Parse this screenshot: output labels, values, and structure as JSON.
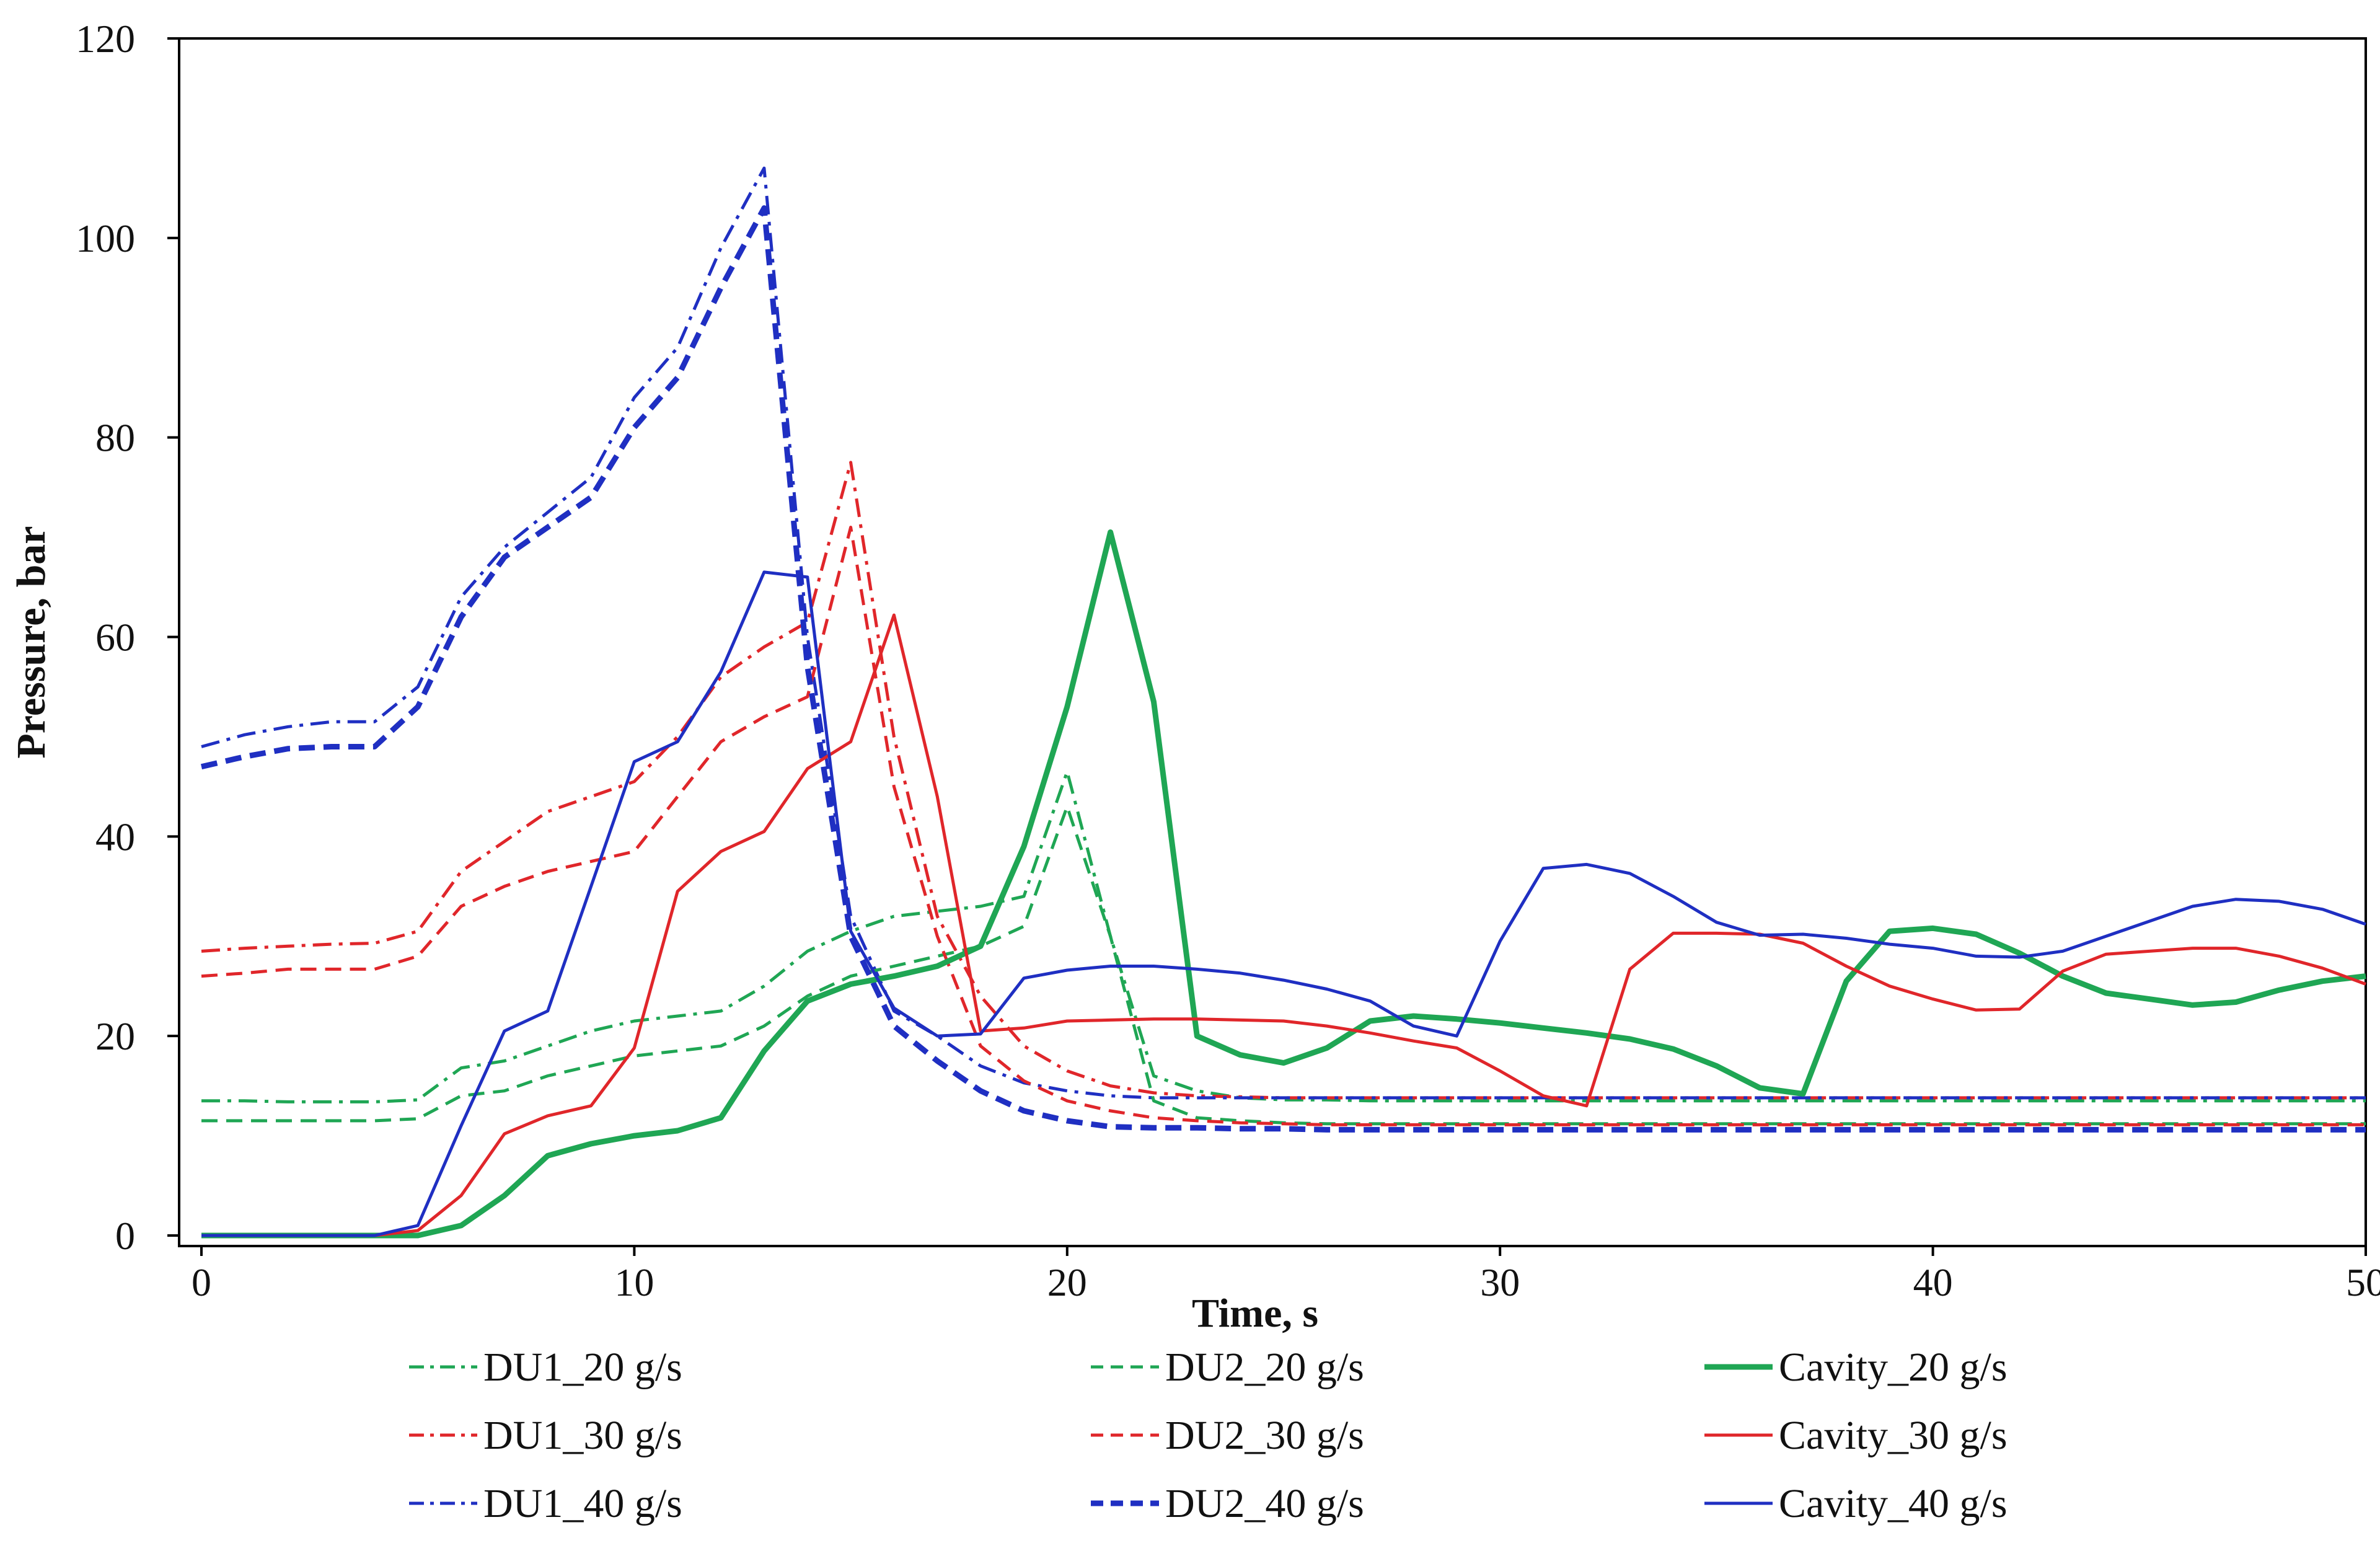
{
  "chart_data": {
    "type": "line",
    "xlabel": "Time, s",
    "ylabel": "Pressure, bar",
    "xlim": [
      0,
      50
    ],
    "ylim": [
      0,
      120
    ],
    "xticks": [
      0,
      10,
      20,
      30,
      40,
      50
    ],
    "yticks": [
      0,
      20,
      40,
      60,
      80,
      100,
      120
    ],
    "grid": false,
    "legend_position": "bottom",
    "series": [
      {
        "name": "DU1_20 g/s",
        "color": "#1fa654",
        "style": "dashdot",
        "weight": "normal",
        "x": [
          0,
          1,
          2,
          3,
          4,
          5,
          6,
          7,
          8,
          9,
          10,
          11,
          12,
          13,
          14,
          15,
          16,
          17,
          18,
          19,
          20,
          21,
          22,
          23,
          24,
          25,
          26,
          27,
          28,
          29,
          30,
          31,
          32,
          33,
          34,
          35,
          36,
          37,
          38,
          39,
          40,
          41,
          42,
          43,
          44,
          45,
          46,
          47,
          48,
          49,
          50
        ],
        "y": [
          13.5,
          13.5,
          13.4,
          13.4,
          13.4,
          13.6,
          16.8,
          17.5,
          19,
          20.5,
          21.5,
          22,
          22.5,
          25,
          28.5,
          30.5,
          32,
          32.5,
          33,
          34,
          46.5,
          30,
          16,
          14.5,
          13.8,
          13.6,
          13.6,
          13.5,
          13.5,
          13.5,
          13.5,
          13.5,
          13.5,
          13.5,
          13.5,
          13.5,
          13.5,
          13.5,
          13.5,
          13.5,
          13.5,
          13.5,
          13.5,
          13.5,
          13.5,
          13.5,
          13.5,
          13.5,
          13.5,
          13.5,
          13.5
        ]
      },
      {
        "name": "DU1_30 g/s",
        "color": "#e0262a",
        "style": "dashdot",
        "weight": "normal",
        "x": [
          0,
          1,
          2,
          3,
          4,
          5,
          6,
          7,
          8,
          9,
          10,
          11,
          12,
          13,
          14,
          15,
          16,
          17,
          18,
          19,
          20,
          21,
          22,
          23,
          24,
          25,
          26,
          27,
          28,
          29,
          30,
          31,
          32,
          33,
          34,
          35,
          36,
          37,
          38,
          39,
          40,
          41,
          42,
          43,
          44,
          45,
          46,
          47,
          48,
          49,
          50
        ],
        "y": [
          28.5,
          28.8,
          29,
          29.2,
          29.3,
          30.5,
          36.5,
          39.5,
          42.5,
          44,
          45.5,
          50,
          56,
          59,
          61.5,
          77.5,
          50,
          32,
          24,
          19,
          16.5,
          15,
          14.3,
          14,
          13.9,
          13.8,
          13.8,
          13.8,
          13.8,
          13.8,
          13.8,
          13.8,
          13.8,
          13.8,
          13.8,
          13.8,
          13.8,
          13.8,
          13.8,
          13.8,
          13.8,
          13.8,
          13.8,
          13.8,
          13.8,
          13.8,
          13.8,
          13.8,
          13.8,
          13.8,
          13.8
        ]
      },
      {
        "name": "DU1_40 g/s",
        "color": "#1f2fc2",
        "style": "dashdot",
        "weight": "normal",
        "x": [
          0,
          1,
          2,
          3,
          4,
          5,
          6,
          7,
          8,
          9,
          10,
          11,
          12,
          13,
          14,
          15,
          16,
          17,
          18,
          19,
          20,
          21,
          22,
          23,
          24,
          25,
          26,
          27,
          28,
          29,
          30,
          31,
          32,
          33,
          34,
          35,
          36,
          37,
          38,
          39,
          40,
          41,
          42,
          43,
          44,
          45,
          46,
          47,
          48,
          49,
          50
        ],
        "y": [
          49,
          50.2,
          51,
          51.5,
          51.5,
          55,
          64,
          69,
          72.5,
          76,
          84,
          89,
          99,
          107,
          60,
          32,
          22.5,
          20,
          17,
          15.3,
          14.5,
          14,
          13.8,
          13.8,
          13.8,
          13.8,
          13.8,
          13.8,
          13.8,
          13.8,
          13.8,
          13.8,
          13.8,
          13.8,
          13.8,
          13.8,
          13.8,
          13.8,
          13.8,
          13.8,
          13.8,
          13.8,
          13.8,
          13.8,
          13.8,
          13.8,
          13.8,
          13.8,
          13.8,
          13.8,
          13.8
        ]
      },
      {
        "name": "DU2_20 g/s",
        "color": "#1fa654",
        "style": "dashed",
        "weight": "normal",
        "x": [
          0,
          1,
          2,
          3,
          4,
          5,
          6,
          7,
          8,
          9,
          10,
          11,
          12,
          13,
          14,
          15,
          16,
          17,
          18,
          19,
          20,
          21,
          22,
          23,
          24,
          25,
          26,
          27,
          28,
          29,
          30,
          31,
          32,
          33,
          34,
          35,
          36,
          37,
          38,
          39,
          40,
          41,
          42,
          43,
          44,
          45,
          46,
          47,
          48,
          49,
          50
        ],
        "y": [
          11.5,
          11.5,
          11.5,
          11.5,
          11.5,
          11.7,
          14,
          14.5,
          16,
          17,
          18,
          18.5,
          19,
          21,
          24,
          26,
          27,
          28,
          29,
          31,
          43,
          30,
          13.5,
          11.8,
          11.5,
          11.3,
          11.2,
          11.2,
          11.2,
          11.2,
          11.2,
          11.2,
          11.2,
          11.2,
          11.2,
          11.2,
          11.2,
          11.2,
          11.2,
          11.2,
          11.2,
          11.2,
          11.2,
          11.2,
          11.2,
          11.2,
          11.2,
          11.2,
          11.2,
          11.2,
          11.2
        ]
      },
      {
        "name": "DU2_30 g/s",
        "color": "#e0262a",
        "style": "dashed",
        "weight": "normal",
        "x": [
          0,
          1,
          2,
          3,
          4,
          5,
          6,
          7,
          8,
          9,
          10,
          11,
          12,
          13,
          14,
          15,
          16,
          17,
          18,
          19,
          20,
          21,
          22,
          23,
          24,
          25,
          26,
          27,
          28,
          29,
          30,
          31,
          32,
          33,
          34,
          35,
          36,
          37,
          38,
          39,
          40,
          41,
          42,
          43,
          44,
          45,
          46,
          47,
          48,
          49,
          50
        ],
        "y": [
          26,
          26.3,
          26.7,
          26.7,
          26.7,
          28,
          33,
          35,
          36.5,
          37.5,
          38.5,
          44,
          49.5,
          52,
          54,
          71,
          45,
          30,
          19,
          15.5,
          13.5,
          12.5,
          11.8,
          11.5,
          11.3,
          11.2,
          11.1,
          11.1,
          11.1,
          11.1,
          11.1,
          11.1,
          11.1,
          11.1,
          11.1,
          11.1,
          11.1,
          11.1,
          11.1,
          11.1,
          11.1,
          11.1,
          11.1,
          11.1,
          11.1,
          11.1,
          11.1,
          11.1,
          11.1,
          11.1,
          11.1
        ]
      },
      {
        "name": "DU2_40 g/s",
        "color": "#1f2fc2",
        "style": "dashed",
        "weight": "bold",
        "x": [
          0,
          1,
          2,
          3,
          4,
          5,
          6,
          7,
          8,
          9,
          10,
          11,
          12,
          13,
          14,
          15,
          16,
          17,
          18,
          19,
          20,
          21,
          22,
          23,
          24,
          25,
          26,
          27,
          28,
          29,
          30,
          31,
          32,
          33,
          34,
          35,
          36,
          37,
          38,
          39,
          40,
          41,
          42,
          43,
          44,
          45,
          46,
          47,
          48,
          49,
          50
        ],
        "y": [
          47,
          48,
          48.8,
          49,
          49,
          53,
          62,
          68,
          71,
          74,
          81,
          86,
          95,
          103,
          57,
          30,
          21,
          17.5,
          14.5,
          12.5,
          11.5,
          10.9,
          10.8,
          10.8,
          10.7,
          10.7,
          10.6,
          10.6,
          10.6,
          10.6,
          10.6,
          10.6,
          10.6,
          10.6,
          10.6,
          10.6,
          10.6,
          10.6,
          10.6,
          10.6,
          10.6,
          10.6,
          10.6,
          10.6,
          10.6,
          10.6,
          10.6,
          10.6,
          10.6,
          10.6,
          10.6
        ]
      },
      {
        "name": "Cavity_20 g/s",
        "color": "#1fa654",
        "style": "solid",
        "weight": "bold",
        "x": [
          0,
          1,
          2,
          3,
          4,
          5,
          6,
          7,
          8,
          9,
          10,
          11,
          12,
          13,
          14,
          15,
          16,
          17,
          18,
          19,
          20,
          21,
          22,
          23,
          24,
          25,
          26,
          27,
          28,
          29,
          30,
          31,
          32,
          33,
          34,
          35,
          36,
          37,
          38,
          39,
          40,
          41,
          42,
          43,
          44,
          45,
          46,
          47,
          48,
          49,
          50
        ],
        "y": [
          0,
          0,
          0,
          0,
          0,
          0,
          1,
          4,
          8,
          9.2,
          10,
          10.5,
          11.8,
          18.5,
          23.5,
          25.2,
          26,
          27,
          29,
          39,
          53,
          70.5,
          53.5,
          20,
          18.1,
          17.3,
          18.8,
          21.5,
          22,
          21.7,
          21.3,
          20.8,
          20.3,
          19.7,
          18.7,
          17,
          14.8,
          14.2,
          25.5,
          30.5,
          30.8,
          30.2,
          28.3,
          26,
          24.3,
          23.7,
          23.1,
          23.4,
          24.6,
          25.5,
          26
        ]
      },
      {
        "name": "Cavity_30 g/s",
        "color": "#e0262a",
        "style": "solid",
        "weight": "normal",
        "x": [
          0,
          1,
          2,
          3,
          4,
          5,
          6,
          7,
          8,
          9,
          10,
          11,
          12,
          13,
          14,
          15,
          16,
          17,
          18,
          19,
          20,
          21,
          22,
          23,
          24,
          25,
          26,
          27,
          28,
          29,
          30,
          31,
          32,
          33,
          34,
          35,
          36,
          37,
          38,
          39,
          40,
          41,
          42,
          43,
          44,
          45,
          46,
          47,
          48,
          49,
          50
        ],
        "y": [
          0,
          0,
          0,
          0,
          0,
          0.5,
          4,
          10.2,
          12,
          13,
          18.8,
          34.5,
          38.5,
          40.5,
          46.8,
          49.5,
          62.2,
          44,
          20.5,
          20.8,
          21.5,
          21.6,
          21.7,
          21.7,
          21.6,
          21.5,
          21,
          20.3,
          19.5,
          18.8,
          16.5,
          14,
          13,
          26.7,
          30.3,
          30.3,
          30.2,
          29.3,
          27,
          25,
          23.7,
          22.6,
          22.7,
          26.5,
          28.2,
          28.5,
          28.8,
          28.8,
          28,
          26.8,
          25.2
        ]
      },
      {
        "name": "Cavity_40 g/s",
        "color": "#1f2fc2",
        "style": "solid",
        "weight": "normal",
        "x": [
          0,
          1,
          2,
          3,
          4,
          5,
          6,
          7,
          8,
          9,
          10,
          11,
          12,
          13,
          14,
          15,
          16,
          17,
          18,
          19,
          20,
          21,
          22,
          23,
          24,
          25,
          26,
          27,
          28,
          29,
          30,
          31,
          32,
          33,
          34,
          35,
          36,
          37,
          38,
          39,
          40,
          41,
          42,
          43,
          44,
          45,
          46,
          47,
          48,
          49,
          50
        ],
        "y": [
          0,
          0,
          0,
          0,
          0,
          1,
          11,
          20.5,
          22.5,
          35,
          47.5,
          49.5,
          56.5,
          66.5,
          66,
          30.5,
          22.8,
          20,
          20.2,
          25.8,
          26.6,
          27,
          27,
          26.7,
          26.3,
          25.6,
          24.7,
          23.5,
          21,
          20,
          29.5,
          36.8,
          37.2,
          36.3,
          34,
          31.4,
          30.1,
          30.2,
          29.8,
          29.2,
          28.8,
          28,
          27.9,
          28.5,
          30,
          31.5,
          33,
          33.7,
          33.5,
          32.7,
          31.2
        ]
      }
    ]
  }
}
